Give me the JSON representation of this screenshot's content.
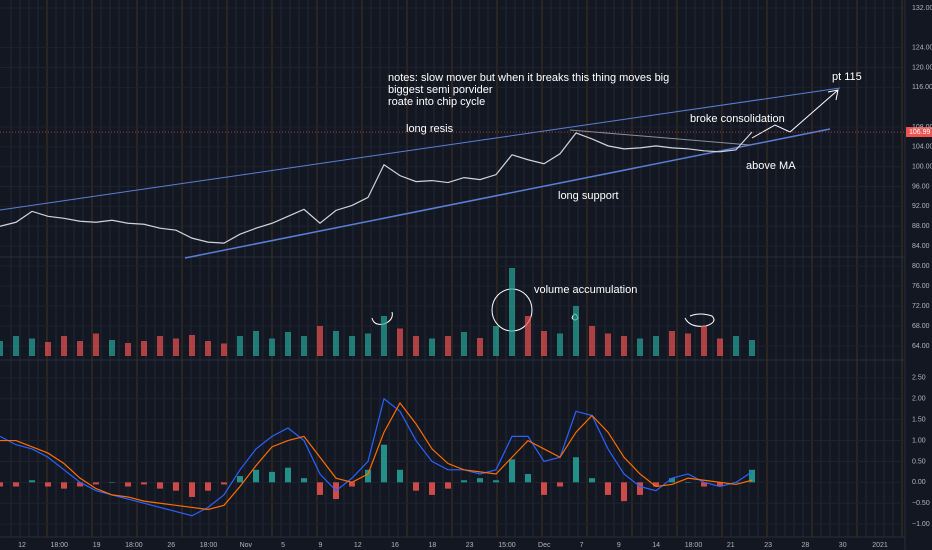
{
  "chart_data": [
    {
      "type": "line",
      "color": "#d1d4dc",
      "grid": true,
      "values": [
        88.0,
        88.8,
        91.0,
        90.0,
        89.6,
        89.0,
        88.8,
        89.2,
        88.6,
        88.4,
        87.6,
        87.2,
        85.6,
        84.8,
        84.6,
        86.4,
        87.6,
        88.6,
        90.0,
        91.4,
        88.6,
        91.2,
        92.2,
        93.8,
        100.4,
        98.2,
        97.0,
        97.2,
        96.8,
        97.8,
        97.4,
        98.4,
        102.4,
        101.4,
        100.6,
        102.6,
        106.8,
        105.6,
        104.2,
        103.6,
        103.8,
        104.2,
        103.8,
        103.6,
        103.2,
        103.0,
        103.4,
        106.99
      ],
      "ylim": [
        82,
        133.6
      ],
      "yticks": [
        {
          "value": 84,
          "label": "84.00"
        },
        {
          "value": 88,
          "label": "88.00"
        },
        {
          "value": 92,
          "label": "92.00"
        },
        {
          "value": 96,
          "label": "96.00"
        },
        {
          "value": 100,
          "label": "100.00"
        },
        {
          "value": 104,
          "label": "104.00"
        },
        {
          "value": 108,
          "label": "108.00"
        },
        {
          "value": 116,
          "label": "116.00"
        },
        {
          "value": 120,
          "label": "120.00"
        },
        {
          "value": 124,
          "label": "124.00"
        },
        {
          "value": 132,
          "label": "132.00"
        }
      ],
      "annotations": [
        "notes: slow mover but when it breaks this thing moves big",
        "biggest semi porvider",
        "roate into chip cycle",
        "long resis",
        "broke consolidation",
        "pt 115",
        "above MA",
        "long support"
      ]
    },
    {
      "type": "bar",
      "up_color": "#26a69a",
      "down_color": "#ef5350",
      "values": [
        65,
        66,
        65.5,
        64.8,
        66,
        65,
        66.5,
        65.2,
        64.6,
        65,
        66,
        65.5,
        66.2,
        65,
        64.5,
        66,
        67,
        65.5,
        66.8,
        66,
        68,
        67,
        66,
        66.5,
        70,
        67.5,
        66,
        65.5,
        66,
        66.8,
        65.6,
        68,
        79.6,
        70,
        67,
        66.5,
        72,
        68,
        66.5,
        66,
        65.5,
        66,
        67,
        66.5,
        68,
        65.5,
        66,
        65.2
      ],
      "ylim": [
        62,
        82
      ],
      "yticks": [
        {
          "value": 64,
          "label": "64.00"
        },
        {
          "value": 68,
          "label": "68.00"
        },
        {
          "value": 72,
          "label": "72.00"
        },
        {
          "value": 76,
          "label": "76.00"
        },
        {
          "value": 80,
          "label": "80.00"
        }
      ],
      "annotations": [
        "volume accumulation"
      ]
    },
    {
      "type": "macd",
      "up_color": "#26a69a",
      "down_color": "#ef5350",
      "values": [
        -0.1,
        -0.1,
        0.05,
        -0.1,
        -0.15,
        -0.1,
        -0.05,
        0.0,
        -0.1,
        -0.05,
        -0.15,
        -0.2,
        -0.35,
        -0.2,
        -0.05,
        0.15,
        0.3,
        0.25,
        0.35,
        0.1,
        -0.3,
        -0.4,
        -0.1,
        0.3,
        0.9,
        0.3,
        -0.2,
        -0.3,
        -0.15,
        0.05,
        0.1,
        0.05,
        0.55,
        0.2,
        -0.3,
        -0.1,
        0.6,
        0.1,
        -0.3,
        -0.45,
        -0.3,
        -0.1,
        0.1,
        0.0,
        -0.1,
        -0.1,
        0.0,
        0.3
      ],
      "series": [
        {
          "color": "#2962ff",
          "values": [
            1.1,
            0.9,
            0.8,
            0.6,
            0.3,
            0.0,
            -0.2,
            -0.3,
            -0.4,
            -0.5,
            -0.6,
            -0.7,
            -0.8,
            -0.6,
            -0.3,
            0.3,
            0.8,
            1.1,
            1.3,
            1.0,
            0.2,
            -0.2,
            0.1,
            0.5,
            2.0,
            1.7,
            1.0,
            0.5,
            0.3,
            0.3,
            0.2,
            0.3,
            1.1,
            1.1,
            0.5,
            0.6,
            1.7,
            1.6,
            0.8,
            0.2,
            -0.1,
            -0.2,
            0.1,
            0.2,
            0.0,
            -0.1,
            0.0,
            0.25
          ]
        },
        {
          "color": "#ff6d00",
          "values": [
            1.0,
            1.0,
            0.85,
            0.7,
            0.45,
            0.1,
            -0.15,
            -0.3,
            -0.35,
            -0.45,
            -0.5,
            -0.55,
            -0.6,
            -0.65,
            -0.55,
            -0.1,
            0.4,
            0.85,
            1.0,
            1.1,
            0.6,
            0.1,
            0.0,
            0.2,
            1.2,
            1.9,
            1.4,
            0.8,
            0.45,
            0.3,
            0.25,
            0.2,
            0.6,
            1.0,
            0.8,
            0.6,
            1.2,
            1.6,
            1.2,
            0.6,
            0.2,
            -0.1,
            -0.05,
            0.1,
            0.05,
            0.0,
            -0.05,
            0.05
          ]
        }
      ],
      "ylim": [
        -1.38,
        2.88
      ],
      "yticks": [
        {
          "value": -1,
          "label": "−1.00"
        },
        {
          "value": -0.5,
          "label": "−0.50"
        },
        {
          "value": 0,
          "label": "0.00"
        },
        {
          "value": 0.5,
          "label": "0.50"
        },
        {
          "value": 1,
          "label": "1.00"
        },
        {
          "value": 1.5,
          "label": "1.50"
        },
        {
          "value": 2,
          "label": "2.00"
        },
        {
          "value": 2.5,
          "label": "2.50"
        }
      ]
    }
  ],
  "x_labels": [
    "12",
    "18:00",
    "19",
    "18:00",
    "26",
    "18:00",
    "Nov",
    "5",
    "9",
    "12",
    "16",
    "18",
    "23",
    "15:00",
    "Dec",
    "7",
    "9",
    "14",
    "18:00",
    "21",
    "23",
    "28",
    "30",
    "2021"
  ]
}
